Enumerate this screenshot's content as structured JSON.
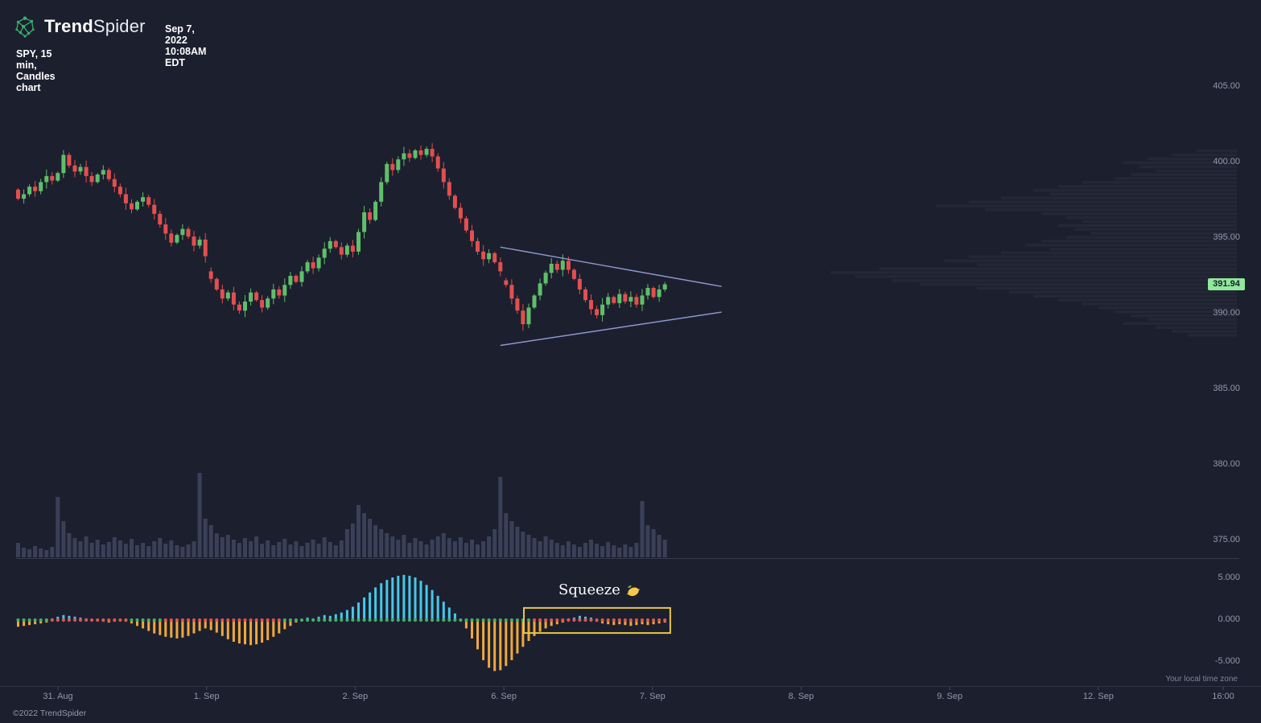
{
  "app": {
    "brand_bold": "Trend",
    "brand_light": "Spider",
    "timestamp": "Sep 7, 2022 10:08AM EDT",
    "chart_label": "SPY, 15 min, Candles chart",
    "timezone_note": "Your local time zone",
    "copyright": "©2022 TrendSpider"
  },
  "colors": {
    "background": "#1c1f2e",
    "candle_up": "#5fbf6a",
    "candle_down": "#e34f4f",
    "volume_bar": "#3a4058",
    "volume_profile": "#242836",
    "oscillator_positive": "#45c8e8",
    "oscillator_negative": "#efa83c",
    "dot_squeeze_on": "#e05555",
    "dot_squeeze_off": "#44b06a",
    "triangle_line": "#8f97cf",
    "squeeze_box": "#e9c73e",
    "axis_text": "#9298ad",
    "last_price_badge_bg": "#90e89b",
    "last_price_badge_text": "#1c1f2e",
    "brand_green": "#35b36b"
  },
  "axes": {
    "price_ticks": [
      "405.00",
      "400.00",
      "395.00",
      "390.00",
      "385.00",
      "380.00",
      "375.00"
    ],
    "oscillator_ticks": [
      "5.000",
      "0.000",
      "-5.000"
    ],
    "time_ticks": [
      "31. Aug",
      "1. Sep",
      "2. Sep",
      "6. Sep",
      "7. Sep",
      "8. Sep",
      "9. Sep",
      "12. Sep",
      "16:00"
    ],
    "last_price": "391.94"
  },
  "annotations": {
    "squeeze_label": "Squeeze",
    "squeeze_emoji": "🍋"
  },
  "chart_data": [
    {
      "type": "candlestick",
      "name": "price",
      "symbol": "SPY",
      "interval": "15 min",
      "title": "SPY, 15 min, Candles chart",
      "y_ticks": [
        405,
        400,
        395,
        390,
        385,
        380,
        375
      ],
      "ylim": [
        373.5,
        406.5
      ],
      "last_price": 391.94,
      "first_open": 398.2,
      "gap_opens": {
        "34": 392.8,
        "86": 392.2
      },
      "day_start_indices": [
        7,
        34,
        60,
        86,
        112
      ],
      "closes": [
        397.6,
        397.9,
        398.4,
        398.1,
        398.7,
        399.1,
        398.8,
        399.3,
        400.5,
        399.8,
        399.4,
        399.7,
        399.1,
        398.7,
        399.2,
        399.5,
        398.9,
        398.4,
        397.9,
        397.3,
        396.9,
        397.4,
        397.7,
        397.2,
        396.6,
        395.9,
        395.3,
        394.7,
        395.2,
        395.6,
        395.1,
        394.5,
        394.9,
        393.8,
        392.3,
        391.6,
        391.0,
        391.4,
        390.6,
        390.2,
        390.8,
        391.4,
        390.9,
        390.4,
        391.0,
        391.6,
        391.2,
        391.9,
        392.5,
        392.1,
        392.8,
        393.4,
        393.0,
        393.7,
        394.3,
        394.8,
        394.4,
        393.9,
        394.5,
        394.1,
        395.4,
        396.7,
        396.2,
        397.4,
        398.7,
        399.9,
        399.5,
        400.2,
        400.6,
        400.3,
        400.8,
        400.5,
        400.9,
        400.4,
        399.6,
        398.7,
        397.8,
        397.0,
        396.3,
        395.5,
        394.8,
        394.1,
        393.6,
        394.0,
        393.4,
        392.8,
        391.9,
        391.0,
        390.2,
        389.3,
        390.4,
        391.2,
        392.0,
        392.7,
        393.3,
        392.9,
        393.5,
        392.9,
        392.3,
        391.6,
        390.9,
        390.3,
        389.9,
        390.6,
        391.1,
        390.7,
        391.3,
        390.8,
        391.1,
        390.6,
        391.2,
        391.7,
        391.1,
        391.6,
        391.94
      ]
    },
    {
      "type": "bar",
      "name": "volume",
      "values": [
        18,
        12,
        10,
        14,
        11,
        9,
        13,
        75,
        45,
        30,
        24,
        20,
        26,
        18,
        22,
        16,
        19,
        25,
        21,
        17,
        23,
        15,
        18,
        14,
        20,
        24,
        17,
        21,
        15,
        13,
        16,
        20,
        105,
        48,
        40,
        30,
        25,
        28,
        22,
        18,
        24,
        20,
        26,
        17,
        21,
        15,
        19,
        23,
        16,
        20,
        14,
        18,
        22,
        17,
        25,
        19,
        15,
        21,
        35,
        42,
        65,
        55,
        48,
        40,
        35,
        30,
        26,
        22,
        28,
        18,
        24,
        20,
        16,
        22,
        26,
        30,
        24,
        20,
        25,
        18,
        22,
        16,
        20,
        26,
        35,
        100,
        55,
        45,
        38,
        32,
        28,
        24,
        20,
        26,
        22,
        18,
        15,
        20,
        16,
        13,
        18,
        22,
        17,
        14,
        19,
        15,
        12,
        16,
        13,
        18,
        70,
        40,
        35,
        28,
        22
      ]
    },
    {
      "type": "volume-profile",
      "name": "profile",
      "price_top": 400.9,
      "price_bottom": 388.4,
      "lengths": [
        0.1,
        0.16,
        0.22,
        0.28,
        0.24,
        0.2,
        0.26,
        0.3,
        0.38,
        0.44,
        0.5,
        0.46,
        0.58,
        0.66,
        0.74,
        0.62,
        0.48,
        0.42,
        0.38,
        0.44,
        0.4,
        0.36,
        0.42,
        0.48,
        0.52,
        0.46,
        0.58,
        0.66,
        0.72,
        0.64,
        0.88,
        1.0,
        0.94,
        0.85,
        0.78,
        0.64,
        0.56,
        0.5,
        0.44,
        0.38,
        0.34,
        0.3,
        0.26,
        0.22,
        0.28,
        0.2,
        0.16,
        0.12
      ]
    },
    {
      "type": "histogram",
      "name": "squeeze_oscillator",
      "y_ticks": [
        5,
        0,
        -5
      ],
      "ylim": [
        -7.5,
        7.5
      ],
      "values": [
        -0.8,
        -0.7,
        -0.6,
        -0.5,
        -0.4,
        -0.3,
        0.2,
        0.4,
        0.6,
        0.5,
        0.4,
        0.3,
        0.2,
        0.1,
        -0.1,
        -0.2,
        -0.3,
        -0.2,
        -0.1,
        -0.2,
        -0.4,
        -0.7,
        -1.0,
        -1.3,
        -1.6,
        -1.8,
        -2.0,
        -2.1,
        -2.2,
        -2.1,
        -1.9,
        -1.6,
        -1.3,
        -1.0,
        -1.2,
        -1.5,
        -1.9,
        -2.3,
        -2.6,
        -2.8,
        -2.9,
        -3.0,
        -2.9,
        -2.7,
        -2.4,
        -2.0,
        -1.6,
        -1.1,
        -0.7,
        -0.3,
        0.1,
        0.3,
        0.2,
        0.4,
        0.6,
        0.5,
        0.7,
        0.9,
        1.2,
        1.6,
        2.1,
        2.7,
        3.3,
        3.9,
        4.4,
        4.8,
        5.1,
        5.3,
        5.4,
        5.3,
        5.1,
        4.7,
        4.2,
        3.6,
        2.9,
        2.2,
        1.5,
        0.8,
        0.1,
        -1.0,
        -2.2,
        -3.5,
        -4.8,
        -5.7,
        -6.1,
        -6.0,
        -5.5,
        -4.8,
        -4.0,
        -3.2,
        -2.5,
        -1.9,
        -1.4,
        -1.0,
        -0.7,
        -0.5,
        -0.3,
        0.2,
        0.3,
        0.5,
        0.4,
        0.3,
        -0.2,
        -0.4,
        -0.5,
        -0.6,
        -0.5,
        -0.6,
        -0.7,
        -0.6,
        -0.5,
        -0.6,
        -0.5,
        -0.4,
        -0.3
      ],
      "dots": "ggggggrrrrrrrrrrrrrrggggggrrrrrrrrrrrrrrrrrrrrrggggggggggggggggggggggggggggggggggggggggggggrrrrrrrrrrrrrrrrrrrrrrrr",
      "box": {
        "start_index": 89.5,
        "end_index": 115.3,
        "value_top": 1.45,
        "value_bottom": -1.55
      }
    },
    {
      "type": "annotation-lines",
      "name": "triangle",
      "upper": {
        "from_index": 85,
        "from_price": 394.4,
        "to_index": 124,
        "to_price": 391.8
      },
      "lower": {
        "from_index": 85,
        "from_price": 387.9,
        "to_index": 124,
        "to_price": 390.1
      }
    }
  ]
}
